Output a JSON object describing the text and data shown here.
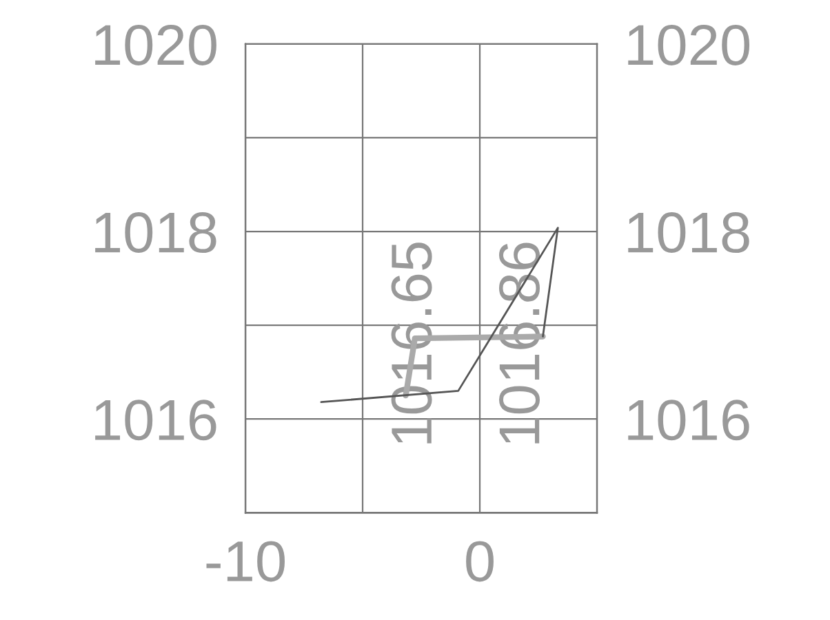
{
  "chart_data": {
    "type": "line",
    "series": [
      {
        "color": "#555555",
        "x": [
          -6.77,
          -0.92,
          3.33,
          2.69
        ],
        "values": [
          1016.18,
          1016.3,
          1018.04,
          1016.88
        ]
      },
      {
        "color": "#aaaaaa",
        "x": [
          -3.16,
          -2.77,
          2.69
        ],
        "values": [
          1016.25,
          1016.86,
          1016.88
        ]
      }
    ],
    "xlim": [
      -10,
      5
    ],
    "xticks": [
      -10,
      {
        "value": -5,
        "label": null
      },
      0,
      {
        "value": 5,
        "label": null
      }
    ],
    "ylim": [
      1015,
      1020
    ],
    "yticks": [
      {
        "value": 1015,
        "label": null
      },
      1016,
      {
        "value": 1017,
        "label": null
      },
      1018,
      {
        "value": 1019,
        "label": null
      },
      1020
    ],
    "y2lim": [
      1015,
      1020
    ],
    "y2ticks": [
      {
        "value": 1015,
        "label": null
      },
      1016,
      {
        "value": 1017,
        "label": null
      },
      1018,
      {
        "value": 1019,
        "label": null
      },
      1020
    ],
    "annotations": [
      {
        "text": "1016.65",
        "x": -2.7,
        "y": 1016.8
      },
      {
        "text": "1016.86",
        "x": 1.9,
        "y": 1016.8
      }
    ],
    "grid": true,
    "legend": false,
    "marker": "none",
    "line_style": "solid"
  }
}
